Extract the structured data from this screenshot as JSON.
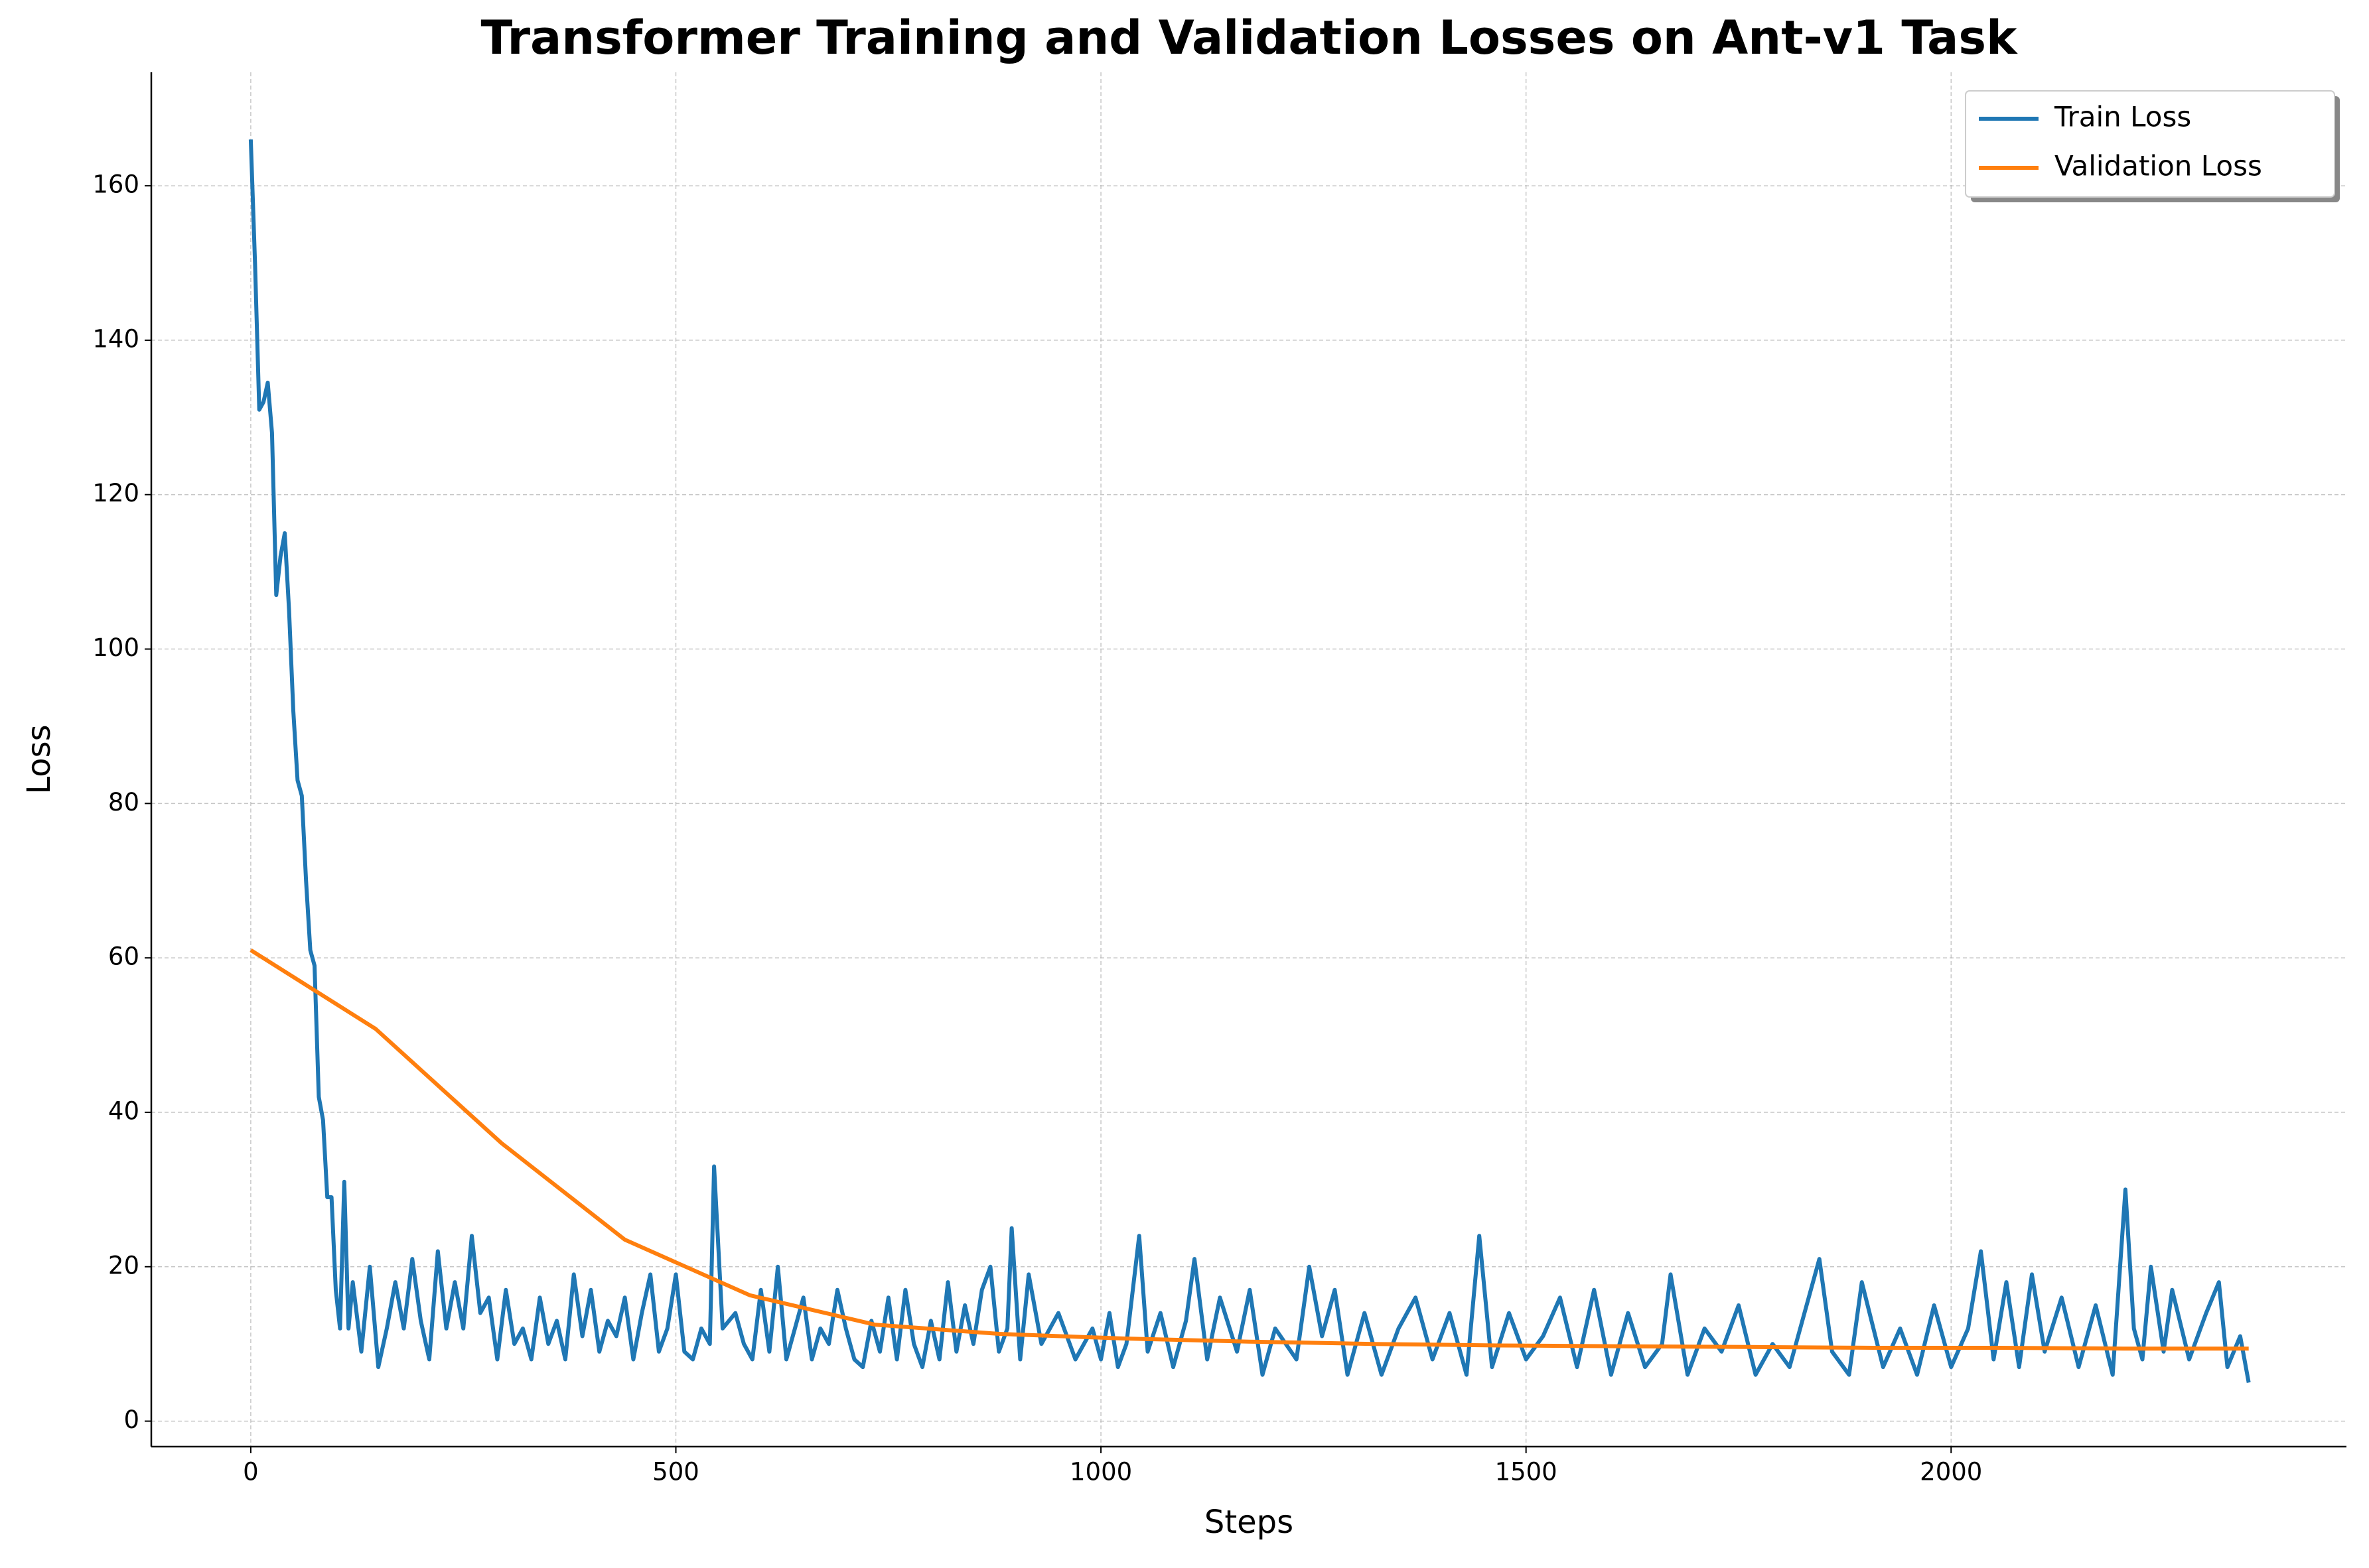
{
  "chart_data": {
    "type": "line",
    "title": "Transformer Training and Validation Losses on Ant-v1 Task",
    "x_label": "Steps",
    "y_label": "Loss",
    "xlim": [
      -117,
      2465
    ],
    "ylim": [
      -3.3,
      174.7
    ],
    "xticks": [
      0,
      500,
      1000,
      1500,
      2000
    ],
    "yticks": [
      0,
      20,
      40,
      60,
      80,
      100,
      120,
      140,
      160
    ],
    "grid": true,
    "legend": "upper right",
    "series": [
      {
        "name": "Train Loss",
        "color": "#1f77b4",
        "x": [
          0,
          5,
          10,
          15,
          20,
          25,
          30,
          35,
          40,
          45,
          50,
          55,
          60,
          65,
          70,
          75,
          80,
          85,
          90,
          95,
          100,
          105,
          110,
          115,
          120,
          130,
          140,
          150,
          160,
          170,
          180,
          190,
          200,
          210,
          220,
          230,
          240,
          250,
          260,
          270,
          280,
          290,
          300,
          310,
          320,
          330,
          340,
          350,
          360,
          370,
          380,
          390,
          400,
          410,
          420,
          430,
          440,
          450,
          460,
          470,
          480,
          490,
          500,
          510,
          520,
          530,
          540,
          545,
          555,
          570,
          580,
          590,
          600,
          610,
          620,
          630,
          640,
          650,
          660,
          670,
          680,
          690,
          700,
          710,
          720,
          730,
          740,
          750,
          760,
          770,
          780,
          790,
          800,
          810,
          820,
          830,
          840,
          850,
          860,
          870,
          880,
          890,
          895,
          905,
          915,
          930,
          950,
          970,
          990,
          1000,
          1010,
          1020,
          1030,
          1045,
          1055,
          1070,
          1085,
          1100,
          1110,
          1125,
          1140,
          1160,
          1175,
          1190,
          1205,
          1230,
          1245,
          1260,
          1275,
          1290,
          1310,
          1330,
          1350,
          1370,
          1390,
          1410,
          1430,
          1445,
          1460,
          1480,
          1500,
          1520,
          1540,
          1560,
          1580,
          1600,
          1620,
          1640,
          1660,
          1670,
          1690,
          1710,
          1730,
          1750,
          1770,
          1790,
          1810,
          1845,
          1860,
          1880,
          1895,
          1920,
          1940,
          1960,
          1980,
          2000,
          2020,
          2035,
          2050,
          2065,
          2080,
          2095,
          2110,
          2130,
          2150,
          2170,
          2190,
          2205,
          2215,
          2225,
          2235,
          2250,
          2260,
          2280,
          2300,
          2315,
          2325,
          2340,
          2350
        ],
        "values": [
          166,
          150,
          131,
          132,
          134.5,
          128,
          107,
          112,
          115,
          105,
          92,
          83,
          81,
          70,
          61,
          59,
          42,
          39,
          29,
          29,
          17,
          12,
          31,
          12,
          18,
          9,
          20,
          7,
          12,
          18,
          12,
          21,
          13,
          8,
          22,
          12,
          18,
          12,
          24,
          14,
          16,
          8,
          17,
          10,
          12,
          8,
          16,
          10,
          13,
          8,
          19,
          11,
          17,
          9,
          13,
          11,
          16,
          8,
          14,
          19,
          9,
          12,
          19,
          9,
          8,
          12,
          10,
          33,
          12,
          14,
          10,
          8,
          17,
          9,
          20,
          8,
          12,
          16,
          8,
          12,
          10,
          17,
          12,
          8,
          7,
          13,
          9,
          16,
          8,
          17,
          10,
          7,
          13,
          8,
          18,
          9,
          15,
          10,
          17,
          20,
          9,
          12,
          25,
          8,
          19,
          10,
          14,
          8,
          12,
          8,
          14,
          7,
          10,
          24,
          9,
          14,
          7,
          13,
          21,
          8,
          16,
          9,
          17,
          6,
          12,
          8,
          20,
          11,
          17,
          6,
          14,
          6,
          12,
          16,
          8,
          14,
          6,
          24,
          7,
          14,
          8,
          11,
          16,
          7,
          17,
          6,
          14,
          7,
          10,
          19,
          6,
          12,
          9,
          15,
          6,
          10,
          7,
          21,
          9,
          6,
          18,
          7,
          12,
          6,
          15,
          7,
          12,
          22,
          8,
          18,
          7,
          19,
          9,
          16,
          7,
          15,
          6,
          30,
          12,
          8,
          20,
          9,
          17,
          8,
          14,
          18,
          7,
          11,
          5
        ]
      },
      {
        "name": "Validation Loss",
        "color": "#ff7f0e",
        "x": [
          0,
          147,
          295,
          440,
          587,
          734,
          880,
          1027,
          1174,
          1321,
          1468,
          1615,
          1762,
          1909,
          2056,
          2203,
          2350
        ],
        "values": [
          61,
          50.8,
          36,
          23.5,
          16.3,
          12.5,
          11.3,
          10.7,
          10.3,
          10.0,
          9.8,
          9.7,
          9.6,
          9.5,
          9.5,
          9.4,
          9.4
        ]
      }
    ]
  }
}
